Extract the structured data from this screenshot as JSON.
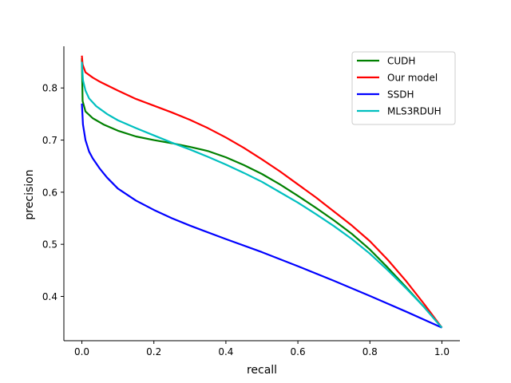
{
  "chart_data": {
    "type": "line",
    "title": "",
    "xlabel": "recall",
    "ylabel": "precision",
    "xlim": [
      -0.05,
      1.05
    ],
    "ylim": [
      0.315,
      0.88
    ],
    "x_ticks": [
      0.0,
      0.2,
      0.4,
      0.6,
      0.8,
      1.0
    ],
    "x_tick_labels": [
      "0.0",
      "0.2",
      "0.4",
      "0.6",
      "0.8",
      "1.0"
    ],
    "y_ticks": [
      0.4,
      0.5,
      0.6,
      0.7,
      0.8
    ],
    "y_tick_labels": [
      "0.4",
      "0.5",
      "0.6",
      "0.7",
      "0.8"
    ],
    "grid": false,
    "legend_position": "top-right",
    "series": [
      {
        "name": "CUDH",
        "color": "#008000",
        "points": [
          [
            0.0,
            0.857
          ],
          [
            0.002,
            0.775
          ],
          [
            0.01,
            0.755
          ],
          [
            0.03,
            0.742
          ],
          [
            0.06,
            0.73
          ],
          [
            0.1,
            0.718
          ],
          [
            0.15,
            0.707
          ],
          [
            0.2,
            0.7
          ],
          [
            0.25,
            0.694
          ],
          [
            0.3,
            0.687
          ],
          [
            0.35,
            0.679
          ],
          [
            0.4,
            0.667
          ],
          [
            0.45,
            0.652
          ],
          [
            0.5,
            0.635
          ],
          [
            0.55,
            0.615
          ],
          [
            0.6,
            0.593
          ],
          [
            0.65,
            0.57
          ],
          [
            0.7,
            0.546
          ],
          [
            0.75,
            0.52
          ],
          [
            0.8,
            0.49
          ],
          [
            0.85,
            0.455
          ],
          [
            0.9,
            0.418
          ],
          [
            0.95,
            0.38
          ],
          [
            1.0,
            0.34
          ]
        ]
      },
      {
        "name": "Our model",
        "color": "#ff0000",
        "points": [
          [
            0.0,
            0.862
          ],
          [
            0.002,
            0.845
          ],
          [
            0.01,
            0.83
          ],
          [
            0.03,
            0.82
          ],
          [
            0.05,
            0.812
          ],
          [
            0.1,
            0.795
          ],
          [
            0.15,
            0.779
          ],
          [
            0.2,
            0.766
          ],
          [
            0.25,
            0.753
          ],
          [
            0.3,
            0.739
          ],
          [
            0.35,
            0.723
          ],
          [
            0.4,
            0.705
          ],
          [
            0.45,
            0.685
          ],
          [
            0.5,
            0.663
          ],
          [
            0.55,
            0.64
          ],
          [
            0.6,
            0.615
          ],
          [
            0.65,
            0.59
          ],
          [
            0.7,
            0.563
          ],
          [
            0.75,
            0.536
          ],
          [
            0.8,
            0.506
          ],
          [
            0.85,
            0.47
          ],
          [
            0.9,
            0.43
          ],
          [
            0.95,
            0.386
          ],
          [
            1.0,
            0.34
          ]
        ]
      },
      {
        "name": "SSDH",
        "color": "#0000ff",
        "points": [
          [
            0.0,
            0.77
          ],
          [
            0.003,
            0.73
          ],
          [
            0.01,
            0.7
          ],
          [
            0.02,
            0.678
          ],
          [
            0.03,
            0.665
          ],
          [
            0.05,
            0.645
          ],
          [
            0.07,
            0.628
          ],
          [
            0.1,
            0.607
          ],
          [
            0.15,
            0.584
          ],
          [
            0.2,
            0.566
          ],
          [
            0.25,
            0.55
          ],
          [
            0.3,
            0.536
          ],
          [
            0.4,
            0.51
          ],
          [
            0.5,
            0.485
          ],
          [
            0.6,
            0.458
          ],
          [
            0.7,
            0.43
          ],
          [
            0.8,
            0.401
          ],
          [
            0.9,
            0.371
          ],
          [
            1.0,
            0.34
          ]
        ]
      },
      {
        "name": "MLS3RDUH",
        "color": "#00bfbf",
        "points": [
          [
            0.0,
            0.85
          ],
          [
            0.003,
            0.815
          ],
          [
            0.01,
            0.795
          ],
          [
            0.02,
            0.78
          ],
          [
            0.04,
            0.765
          ],
          [
            0.07,
            0.75
          ],
          [
            0.1,
            0.738
          ],
          [
            0.15,
            0.723
          ],
          [
            0.2,
            0.709
          ],
          [
            0.25,
            0.695
          ],
          [
            0.3,
            0.682
          ],
          [
            0.35,
            0.668
          ],
          [
            0.4,
            0.653
          ],
          [
            0.45,
            0.637
          ],
          [
            0.5,
            0.62
          ],
          [
            0.55,
            0.6
          ],
          [
            0.6,
            0.58
          ],
          [
            0.65,
            0.558
          ],
          [
            0.7,
            0.535
          ],
          [
            0.75,
            0.51
          ],
          [
            0.8,
            0.482
          ],
          [
            0.85,
            0.45
          ],
          [
            0.9,
            0.416
          ],
          [
            0.95,
            0.38
          ],
          [
            1.0,
            0.34
          ]
        ]
      }
    ]
  }
}
